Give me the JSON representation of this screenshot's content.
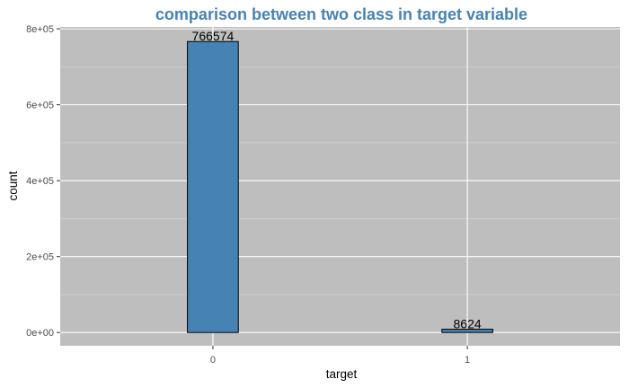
{
  "chart_data": {
    "type": "bar",
    "title": "comparison between two class in target variable",
    "xlabel": "target",
    "ylabel": "count",
    "categories": [
      "0",
      "1"
    ],
    "values": [
      766574,
      8624
    ],
    "data_labels": [
      "766574",
      "8624"
    ],
    "ylim": [
      -35000,
      805000
    ],
    "yticks": [
      0,
      200000,
      400000,
      600000,
      800000
    ],
    "ytick_labels": [
      "0e+00",
      "2e+05",
      "4e+05",
      "6e+05",
      "8e+05"
    ],
    "grid": true,
    "legend": "none"
  },
  "colors": {
    "title": "#4682b4",
    "bar_fill": "#4682b4",
    "bar_stroke": "#000000",
    "panel_background": "#bebebe",
    "grid_major": "#ffffff",
    "grid_minor": "#d8d8d8"
  }
}
